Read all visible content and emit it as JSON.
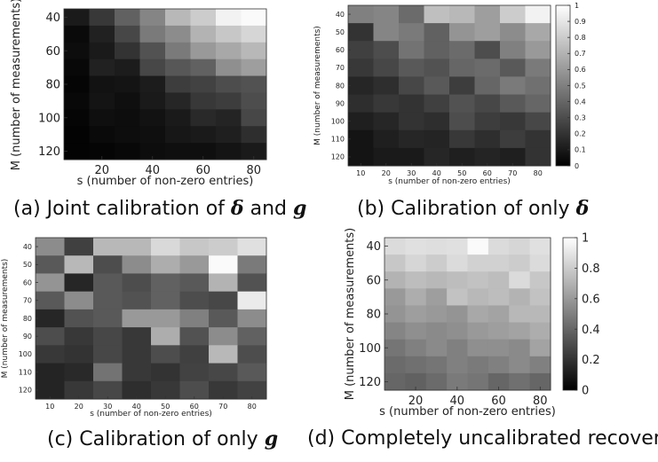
{
  "captions": [
    {
      "label": "(a)",
      "text": "Joint calibration of",
      "sym1": "δ",
      "mid": "and",
      "sym2": "g"
    },
    {
      "label": "(b)",
      "text": "Calibration of only",
      "sym1": "δ"
    },
    {
      "label": "(c)",
      "text": "Calibration of only",
      "sym1": "g"
    },
    {
      "label": "(d)",
      "text": "Completely uncalibrated recovery"
    }
  ],
  "chart_data": [
    {
      "id": "a",
      "type": "heatmap",
      "xlabel": "s (number of non-zero entries)",
      "ylabel": "M (number of measurements)",
      "x": [
        10,
        20,
        30,
        40,
        50,
        60,
        70,
        80
      ],
      "y": [
        40,
        50,
        60,
        70,
        80,
        90,
        100,
        110,
        120
      ],
      "xticks": [
        20,
        40,
        60,
        80
      ],
      "yticks": [
        40,
        60,
        80,
        100,
        120
      ],
      "colorbar": false,
      "values": [
        [
          0.1,
          0.22,
          0.38,
          0.52,
          0.72,
          0.8,
          0.95,
          0.98
        ],
        [
          0.04,
          0.13,
          0.28,
          0.48,
          0.55,
          0.7,
          0.78,
          0.84
        ],
        [
          0.05,
          0.1,
          0.2,
          0.32,
          0.48,
          0.6,
          0.66,
          0.72
        ],
        [
          0.03,
          0.13,
          0.11,
          0.28,
          0.34,
          0.38,
          0.56,
          0.62
        ],
        [
          0.02,
          0.07,
          0.08,
          0.11,
          0.24,
          0.26,
          0.3,
          0.32
        ],
        [
          0.03,
          0.08,
          0.06,
          0.1,
          0.15,
          0.22,
          0.24,
          0.3
        ],
        [
          0.02,
          0.06,
          0.05,
          0.07,
          0.1,
          0.16,
          0.14,
          0.28
        ],
        [
          0.01,
          0.04,
          0.05,
          0.06,
          0.09,
          0.1,
          0.12,
          0.18
        ],
        [
          0.01,
          0.02,
          0.03,
          0.05,
          0.06,
          0.06,
          0.08,
          0.1
        ]
      ]
    },
    {
      "id": "b",
      "type": "heatmap",
      "xlabel": "s (number of non-zero entries)",
      "ylabel": "M (number of measurements)",
      "x": [
        10,
        20,
        30,
        40,
        50,
        60,
        70,
        80
      ],
      "y": [
        40,
        50,
        60,
        70,
        80,
        90,
        100,
        110,
        120
      ],
      "xticks": [
        10,
        20,
        30,
        40,
        50,
        60,
        70,
        80
      ],
      "yticks": [
        40,
        50,
        60,
        70,
        80,
        90,
        100,
        110,
        120
      ],
      "colorbar": true,
      "cticks": [
        0,
        0.1,
        0.2,
        0.3,
        0.4,
        0.5,
        0.6,
        0.7,
        0.8,
        0.9,
        1
      ],
      "clim": [
        0,
        1
      ],
      "values": [
        [
          0.5,
          0.52,
          0.42,
          0.75,
          0.72,
          0.62,
          0.8,
          0.95
        ],
        [
          0.2,
          0.52,
          0.48,
          0.38,
          0.58,
          0.62,
          0.55,
          0.66
        ],
        [
          0.25,
          0.3,
          0.45,
          0.38,
          0.42,
          0.3,
          0.5,
          0.6
        ],
        [
          0.22,
          0.28,
          0.35,
          0.32,
          0.4,
          0.42,
          0.35,
          0.48
        ],
        [
          0.15,
          0.18,
          0.28,
          0.35,
          0.24,
          0.4,
          0.48,
          0.44
        ],
        [
          0.18,
          0.22,
          0.2,
          0.25,
          0.32,
          0.28,
          0.35,
          0.4
        ],
        [
          0.12,
          0.15,
          0.2,
          0.18,
          0.3,
          0.24,
          0.22,
          0.28
        ],
        [
          0.08,
          0.12,
          0.15,
          0.14,
          0.22,
          0.18,
          0.24,
          0.2
        ],
        [
          0.08,
          0.1,
          0.1,
          0.15,
          0.12,
          0.14,
          0.12,
          0.2
        ]
      ]
    },
    {
      "id": "c",
      "type": "heatmap",
      "xlabel": "s (number of non-zero entries)",
      "ylabel": "M (number of measurements)",
      "x": [
        10,
        20,
        30,
        40,
        50,
        60,
        70,
        80
      ],
      "y": [
        40,
        50,
        60,
        70,
        80,
        90,
        100,
        110,
        120
      ],
      "xticks": [
        10,
        20,
        30,
        40,
        50,
        60,
        70,
        80
      ],
      "yticks": [
        40,
        50,
        60,
        70,
        80,
        90,
        100,
        110,
        120
      ],
      "colorbar": false,
      "values": [
        [
          0.55,
          0.25,
          0.72,
          0.72,
          0.85,
          0.78,
          0.8,
          0.88
        ],
        [
          0.35,
          0.72,
          0.3,
          0.55,
          0.68,
          0.6,
          0.98,
          0.48
        ],
        [
          0.58,
          0.15,
          0.35,
          0.3,
          0.38,
          0.35,
          0.7,
          0.32
        ],
        [
          0.35,
          0.55,
          0.35,
          0.32,
          0.38,
          0.3,
          0.28,
          0.92
        ],
        [
          0.15,
          0.32,
          0.35,
          0.6,
          0.6,
          0.5,
          0.35,
          0.55
        ],
        [
          0.3,
          0.22,
          0.28,
          0.22,
          0.68,
          0.32,
          0.55,
          0.38
        ],
        [
          0.22,
          0.2,
          0.28,
          0.22,
          0.3,
          0.25,
          0.72,
          0.3
        ],
        [
          0.14,
          0.16,
          0.45,
          0.22,
          0.2,
          0.26,
          0.28,
          0.35
        ],
        [
          0.14,
          0.22,
          0.28,
          0.18,
          0.22,
          0.3,
          0.22,
          0.26
        ]
      ]
    },
    {
      "id": "d",
      "type": "heatmap",
      "xlabel": "s (number of non-zero entries)",
      "ylabel": "M (number of measurements)",
      "x": [
        10,
        20,
        30,
        40,
        50,
        60,
        70,
        80
      ],
      "y": [
        40,
        50,
        60,
        70,
        80,
        90,
        100,
        110,
        120
      ],
      "xticks": [
        20,
        40,
        60,
        80
      ],
      "yticks": [
        40,
        60,
        80,
        100,
        120
      ],
      "colorbar": true,
      "cticks": [
        0,
        0.2,
        0.4,
        0.6,
        0.8,
        1
      ],
      "clim": [
        0,
        1
      ],
      "values": [
        [
          0.86,
          0.88,
          0.87,
          0.88,
          0.98,
          0.86,
          0.84,
          0.88
        ],
        [
          0.78,
          0.84,
          0.8,
          0.86,
          0.82,
          0.82,
          0.8,
          0.86
        ],
        [
          0.7,
          0.74,
          0.72,
          0.74,
          0.76,
          0.74,
          0.86,
          0.78
        ],
        [
          0.6,
          0.68,
          0.62,
          0.76,
          0.72,
          0.74,
          0.7,
          0.76
        ],
        [
          0.58,
          0.62,
          0.6,
          0.58,
          0.66,
          0.64,
          0.72,
          0.72
        ],
        [
          0.52,
          0.56,
          0.54,
          0.56,
          0.6,
          0.62,
          0.64,
          0.68
        ],
        [
          0.46,
          0.5,
          0.54,
          0.5,
          0.56,
          0.56,
          0.54,
          0.64
        ],
        [
          0.42,
          0.44,
          0.46,
          0.5,
          0.48,
          0.5,
          0.54,
          0.5
        ],
        [
          0.4,
          0.38,
          0.42,
          0.48,
          0.46,
          0.4,
          0.44,
          0.4
        ]
      ]
    }
  ]
}
